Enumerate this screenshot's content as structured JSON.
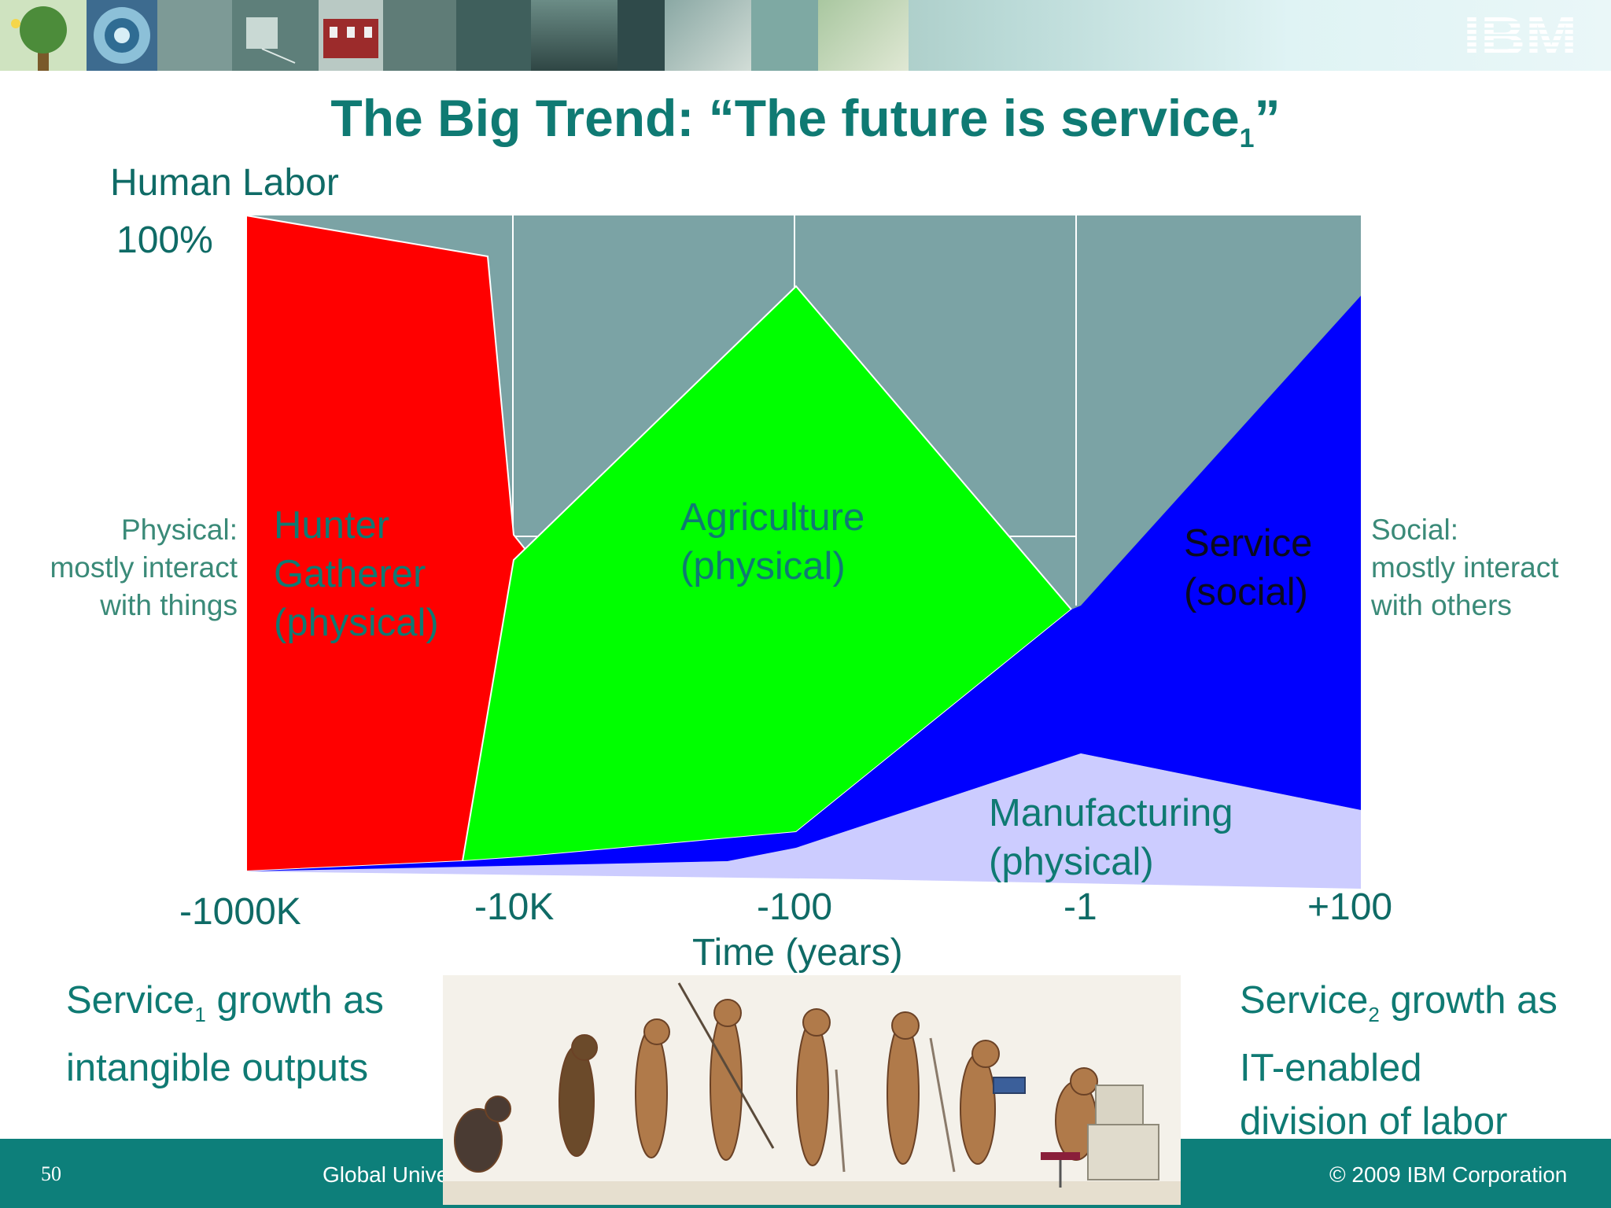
{
  "header": {
    "logo_text": "IBM"
  },
  "title": {
    "main": "The Big Trend: “The future is service",
    "subscript": "1",
    "closing": "”"
  },
  "axis": {
    "y_title": "Human Labor",
    "y_top": "100%",
    "x_ticks": [
      "-1000K",
      "-10K",
      "-100",
      "-1",
      "+100"
    ],
    "x_title": "Time (years)"
  },
  "side_left": [
    "Physical:",
    "mostly interact",
    "with things"
  ],
  "side_right": [
    "Social:",
    "mostly interact",
    "with others"
  ],
  "regions": {
    "hunter": [
      "Hunter",
      "Gatherer",
      "(physical)"
    ],
    "agriculture": [
      "Agriculture",
      "(physical)"
    ],
    "service": [
      "Service",
      "(social)"
    ],
    "manufacturing": [
      "Manufacturing",
      "(physical)"
    ]
  },
  "colors": {
    "hunter": "#ff0000",
    "agriculture": "#00ff00",
    "service": "#0000ff",
    "manufacturing": "#ccccff",
    "background": "#7ba3a5",
    "accent": "#0f7a73"
  },
  "left_note": {
    "line1_pre": "Service",
    "line1_sub": "1",
    "line1_post": " growth as",
    "line2": "intangible outputs"
  },
  "right_note": {
    "line1_pre": "Service",
    "line1_sub": "2",
    "line1_post": " growth as",
    "line2": "IT-enabled",
    "line3": "division of labor"
  },
  "footer": {
    "page_number": "50",
    "left_text": "Global Unive",
    "copyright": "© 2009 IBM Corporation"
  }
}
